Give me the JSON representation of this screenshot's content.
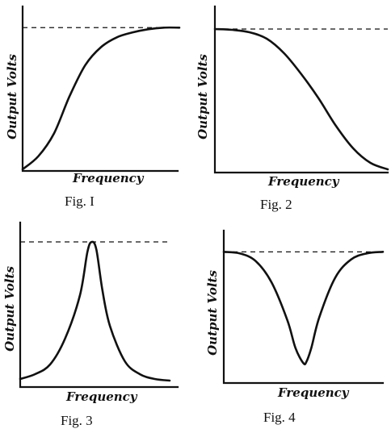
{
  "chart_data": [
    {
      "type": "line",
      "caption": "Fig. I",
      "xlabel": "Frequency",
      "ylabel": "Output Volts",
      "reference_line": {
        "style": "dashed",
        "y": 0.87
      },
      "series": [
        {
          "x": [
            0,
            0.1,
            0.2,
            0.3,
            0.4,
            0.5,
            0.6,
            0.7,
            0.8,
            0.9,
            1.0
          ],
          "y": [
            0.0,
            0.08,
            0.22,
            0.45,
            0.64,
            0.75,
            0.81,
            0.84,
            0.86,
            0.87,
            0.87
          ]
        }
      ]
    },
    {
      "type": "line",
      "caption": "Fig. 2",
      "xlabel": "Frequency",
      "ylabel": "Output Volts",
      "reference_line": {
        "style": "dashed",
        "y": 0.88
      },
      "series": [
        {
          "x": [
            0,
            0.1,
            0.2,
            0.3,
            0.4,
            0.5,
            0.6,
            0.7,
            0.8,
            0.9,
            1.0
          ],
          "y": [
            0.88,
            0.875,
            0.86,
            0.82,
            0.73,
            0.6,
            0.45,
            0.28,
            0.14,
            0.05,
            0.01
          ]
        }
      ]
    },
    {
      "type": "line",
      "caption": "Fig. 3",
      "xlabel": "Frequency",
      "ylabel": "Output Volts",
      "reference_line": {
        "style": "dashed",
        "y": 0.88
      },
      "series": [
        {
          "x": [
            0,
            0.1,
            0.2,
            0.3,
            0.4,
            0.45,
            0.48,
            0.51,
            0.55,
            0.6,
            0.7,
            0.8,
            0.9,
            1.0
          ],
          "y": [
            0.03,
            0.06,
            0.12,
            0.28,
            0.55,
            0.82,
            0.88,
            0.83,
            0.58,
            0.36,
            0.14,
            0.06,
            0.03,
            0.02
          ]
        }
      ]
    },
    {
      "type": "line",
      "caption": "Fig. 4",
      "xlabel": "Frequency",
      "ylabel": "Output Volts",
      "reference_line": {
        "style": "dashed",
        "y": 0.85
      },
      "series": [
        {
          "x": [
            0,
            0.1,
            0.2,
            0.3,
            0.4,
            0.45,
            0.5,
            0.52,
            0.55,
            0.6,
            0.7,
            0.8,
            0.9,
            1.0
          ],
          "y": [
            0.85,
            0.84,
            0.79,
            0.65,
            0.4,
            0.22,
            0.12,
            0.13,
            0.22,
            0.42,
            0.68,
            0.8,
            0.84,
            0.85
          ]
        }
      ]
    }
  ]
}
